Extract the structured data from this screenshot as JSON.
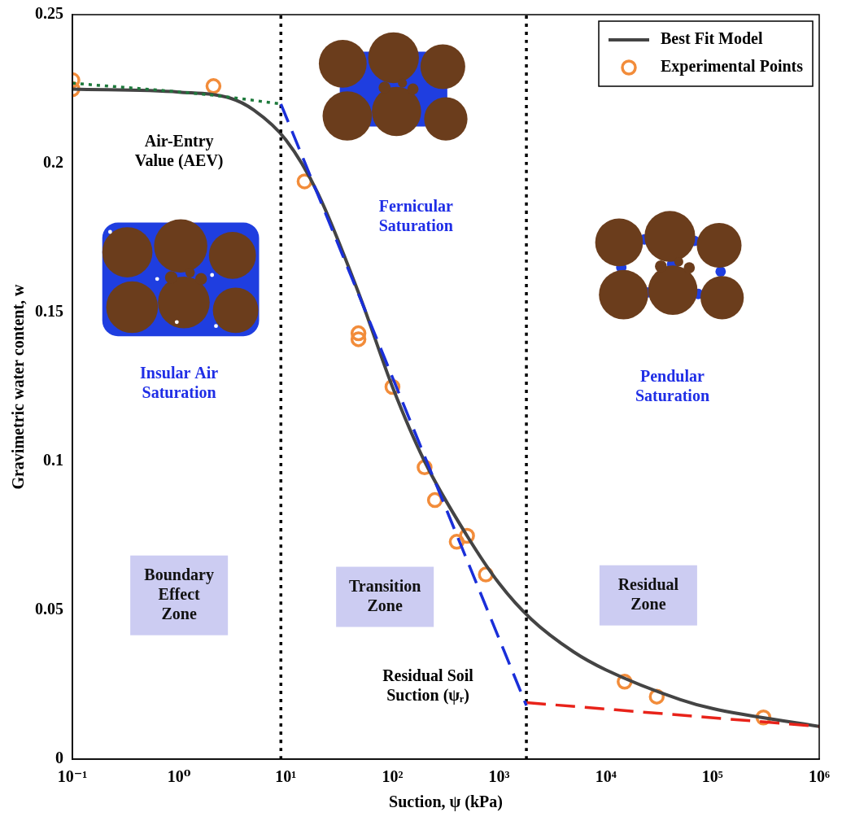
{
  "chart_data": {
    "type": "scatter",
    "x_label": "Suction, ψ (kPa)",
    "y_label": "Gravimetric water content, w",
    "log": "x",
    "grid": false,
    "legend": "top-right",
    "xlim": [
      0.1,
      1000000
    ],
    "xticks": [
      {
        "value": 0.1,
        "label": "10⁻¹"
      },
      {
        "value": 1,
        "label": "10⁰"
      },
      {
        "value": 10,
        "label": "10¹"
      },
      {
        "value": 100,
        "label": "10²"
      },
      {
        "value": 1000,
        "label": "10³"
      },
      {
        "value": 10000,
        "label": "10⁴"
      },
      {
        "value": 100000,
        "label": "10⁵"
      },
      {
        "value": 1000000,
        "label": "10⁶"
      }
    ],
    "ylim": [
      0,
      0.25
    ],
    "yticks": [
      0,
      0.05,
      0.1,
      0.15,
      0.2,
      0.25
    ],
    "series": [
      {
        "type": "line",
        "color": "#1e7a3c",
        "line_style": "dotted",
        "x": [
          0.1,
          2,
          9
        ],
        "values": [
          0.227,
          0.223,
          0.22
        ]
      },
      {
        "type": "line",
        "color": "#1a2fd9",
        "line_style": "dashed",
        "x": [
          9,
          1800
        ],
        "values": [
          0.22,
          0.018
        ]
      },
      {
        "type": "line",
        "color": "#e8231a",
        "line_style": "dashed",
        "x": [
          1800,
          1000000
        ],
        "values": [
          0.019,
          0.011
        ]
      },
      {
        "type": "line",
        "color": "#000000",
        "line_style": "dotted",
        "x": [
          9,
          9
        ],
        "values": [
          0,
          0.25
        ]
      },
      {
        "type": "line",
        "color": "#000000",
        "line_style": "dotted",
        "x": [
          1800,
          1800
        ],
        "values": [
          0,
          0.25
        ]
      },
      {
        "name": "Best Fit Model",
        "type": "line",
        "color": "#444444",
        "line_style": "solid",
        "x": [
          0.1,
          1,
          3,
          5,
          10,
          20,
          50,
          100,
          200,
          500,
          1000,
          2000,
          5000,
          10000,
          50000,
          100000,
          1000000
        ],
        "values": [
          0.225,
          0.224,
          0.222,
          0.218,
          0.208,
          0.19,
          0.155,
          0.125,
          0.1,
          0.075,
          0.059,
          0.047,
          0.036,
          0.03,
          0.02,
          0.017,
          0.011
        ]
      },
      {
        "name": "Experimental Points",
        "type": "scatter",
        "color": "#f28c3a",
        "marker": "circle",
        "x": [
          0.1,
          0.1,
          2.1,
          15,
          48,
          48,
          100,
          200,
          250,
          400,
          500,
          750,
          15000,
          30000,
          300000
        ],
        "values": [
          0.228,
          0.225,
          0.226,
          0.194,
          0.143,
          0.141,
          0.125,
          0.098,
          0.087,
          0.073,
          0.075,
          0.062,
          0.026,
          0.021,
          0.014
        ]
      }
    ],
    "annotations": [
      {
        "text": "Air-Entry Value (AEV)",
        "x": 1,
        "y": 0.204,
        "color": "#000000"
      },
      {
        "text": "Fernicular Saturation",
        "x": 166,
        "y": 0.182,
        "color": "#1f2ee6"
      },
      {
        "text": "Insular Air Saturation",
        "x": 1,
        "y": 0.126,
        "color": "#1f2ee6"
      },
      {
        "text": "Pendular Saturation",
        "x": 42000,
        "y": 0.125,
        "color": "#1f2ee6"
      },
      {
        "text": "Residual Soil Suction (ψᵣ)",
        "x": 215,
        "y": 0.0245,
        "color": "#000000"
      }
    ],
    "zones": [
      {
        "text": "Boundary Effect Zone",
        "x": 1,
        "y": 0.055,
        "color": "#ccccf2"
      },
      {
        "text": "Transition Zone",
        "x": 85,
        "y": 0.0545,
        "color": "#ccccf2"
      },
      {
        "text": "Residual Zone",
        "x": 25000,
        "y": 0.055,
        "color": "#ccccf2"
      }
    ]
  }
}
